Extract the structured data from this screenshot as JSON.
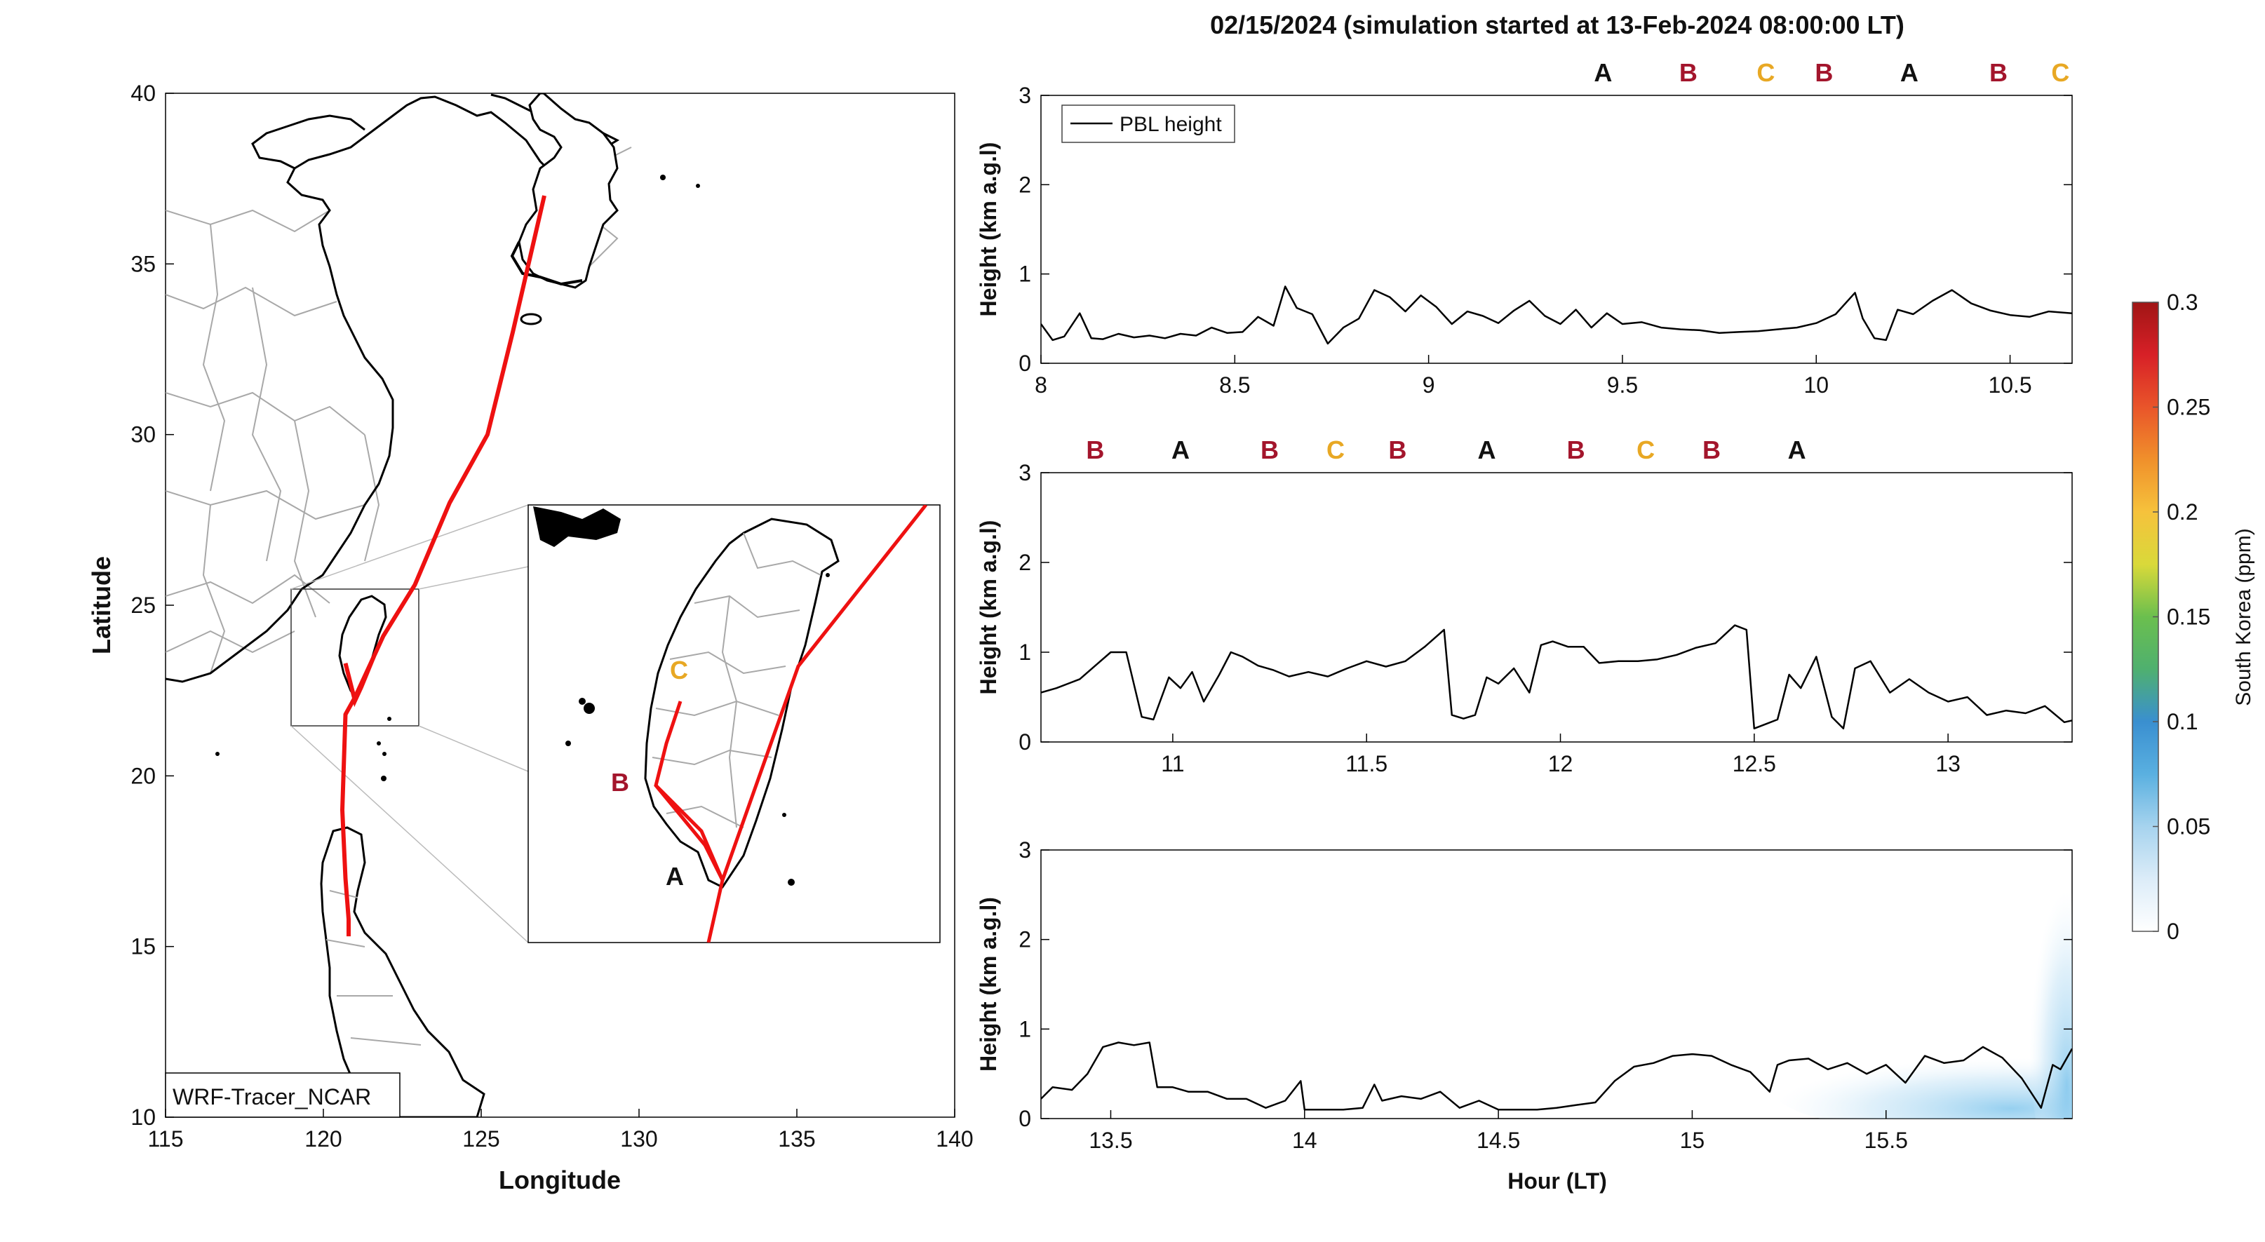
{
  "figure_title": "02/15/2024 (simulation started at 13-Feb-2024 08:00:00 LT)",
  "colors": {
    "track": "#ee1111",
    "A": "#111111",
    "B": "#a3152c",
    "C": "#e8a824",
    "coast": "#000000",
    "border": "#a8a8a8",
    "pbl": "#000000"
  },
  "map": {
    "xlabel": "Longitude",
    "ylabel": "Latitude",
    "xlim": [
      115,
      140
    ],
    "ylim": [
      10,
      40
    ],
    "xticks": [
      "115",
      "120",
      "125",
      "130",
      "135",
      "140"
    ],
    "yticks": [
      "10",
      "15",
      "20",
      "25",
      "30",
      "35",
      "40"
    ],
    "model_label": "WRF-Tracer_NCAR",
    "track": [
      [
        127.0,
        37.0
      ],
      [
        126.0,
        33.0
      ],
      [
        125.2,
        30.0
      ],
      [
        124.0,
        28.0
      ],
      [
        122.9,
        25.6
      ],
      [
        121.9,
        24.1
      ],
      [
        121.6,
        23.5
      ],
      [
        121.0,
        22.3
      ],
      [
        120.7,
        21.8
      ],
      [
        120.6,
        19.0
      ],
      [
        120.7,
        17.0
      ],
      [
        120.8,
        15.8
      ],
      [
        120.8,
        15.3
      ]
    ],
    "inset_track_outer": [
      [
        139.0,
        25.0
      ],
      [
        121.6,
        23.5
      ],
      [
        121.2,
        22.7
      ],
      [
        120.9,
        21.95
      ],
      [
        121.0,
        21.5
      ]
    ],
    "inset_track_inner": [
      [
        120.93,
        22.03
      ],
      [
        120.55,
        22.3
      ],
      [
        120.22,
        22.62
      ],
      [
        120.23,
        23.0
      ],
      [
        120.55,
        23.48
      ]
    ],
    "inset_box": [
      119.2,
      21.5,
      123.2,
      26.0
    ],
    "inset_labels": [
      {
        "text": "A",
        "key": "A"
      },
      {
        "text": "B",
        "key": "B"
      },
      {
        "text": "C",
        "key": "C"
      }
    ]
  },
  "chart_data": [
    {
      "type": "line",
      "title": "",
      "legend": "PBL height",
      "legend_position": "top-left",
      "xlim": [
        8.0,
        10.66
      ],
      "ylim": [
        0,
        3
      ],
      "xticks": [
        "8",
        "8.5",
        "9",
        "9.5",
        "10",
        "10.5"
      ],
      "yticks": [
        "0",
        "1",
        "2",
        "3"
      ],
      "xlabel": "",
      "ylabel": "Height (km a.g.l)",
      "series": [
        {
          "name": "PBL height",
          "x": [
            8.0,
            8.03,
            8.06,
            8.1,
            8.13,
            8.16,
            8.2,
            8.24,
            8.28,
            8.32,
            8.36,
            8.4,
            8.44,
            8.48,
            8.52,
            8.56,
            8.6,
            8.63,
            8.66,
            8.7,
            8.74,
            8.78,
            8.82,
            8.86,
            8.9,
            8.94,
            8.98,
            9.02,
            9.06,
            9.1,
            9.14,
            9.18,
            9.22,
            9.26,
            9.3,
            9.34,
            9.38,
            9.42,
            9.46,
            9.5,
            9.55,
            9.6,
            9.65,
            9.7,
            9.75,
            9.8,
            9.85,
            9.9,
            9.95,
            10.0,
            10.05,
            10.1,
            10.12,
            10.15,
            10.18,
            10.21,
            10.25,
            10.3,
            10.35,
            10.4,
            10.45,
            10.5,
            10.55,
            10.6,
            10.66
          ],
          "y": [
            0.44,
            0.26,
            0.3,
            0.56,
            0.28,
            0.27,
            0.33,
            0.29,
            0.31,
            0.28,
            0.33,
            0.31,
            0.4,
            0.34,
            0.35,
            0.52,
            0.42,
            0.86,
            0.62,
            0.55,
            0.22,
            0.4,
            0.5,
            0.82,
            0.74,
            0.58,
            0.76,
            0.63,
            0.44,
            0.58,
            0.53,
            0.45,
            0.59,
            0.7,
            0.53,
            0.44,
            0.6,
            0.4,
            0.56,
            0.44,
            0.46,
            0.4,
            0.38,
            0.37,
            0.34,
            0.35,
            0.36,
            0.38,
            0.4,
            0.45,
            0.55,
            0.79,
            0.5,
            0.28,
            0.26,
            0.6,
            0.55,
            0.7,
            0.82,
            0.67,
            0.59,
            0.54,
            0.52,
            0.58,
            0.56
          ]
        }
      ],
      "top_labels": [
        {
          "text": "A",
          "key": "A",
          "x": 9.45
        },
        {
          "text": "B",
          "key": "B",
          "x": 9.67
        },
        {
          "text": "C",
          "key": "C",
          "x": 9.87
        },
        {
          "text": "B",
          "key": "B",
          "x": 10.02
        },
        {
          "text": "A",
          "key": "A",
          "x": 10.24
        },
        {
          "text": "B",
          "key": "B",
          "x": 10.47
        },
        {
          "text": "C",
          "key": "C",
          "x": 10.63
        }
      ]
    },
    {
      "type": "line",
      "title": "",
      "legend": "",
      "xlim": [
        10.66,
        13.32
      ],
      "ylim": [
        0,
        3
      ],
      "xticks": [
        "11",
        "11.5",
        "12",
        "12.5",
        "13"
      ],
      "yticks": [
        "0",
        "1",
        "2",
        "3"
      ],
      "xlabel": "",
      "ylabel": "Height (km a.g.l)",
      "series": [
        {
          "name": "PBL height",
          "x": [
            10.66,
            10.7,
            10.76,
            10.8,
            10.84,
            10.88,
            10.92,
            10.95,
            10.99,
            11.02,
            11.05,
            11.08,
            11.12,
            11.15,
            11.18,
            11.22,
            11.26,
            11.3,
            11.35,
            11.4,
            11.45,
            11.5,
            11.55,
            11.6,
            11.65,
            11.7,
            11.72,
            11.75,
            11.78,
            11.81,
            11.84,
            11.88,
            11.92,
            11.95,
            11.98,
            12.02,
            12.06,
            12.1,
            12.15,
            12.2,
            12.25,
            12.3,
            12.35,
            12.4,
            12.45,
            12.48,
            12.5,
            12.53,
            12.56,
            12.59,
            12.62,
            12.66,
            12.7,
            12.73,
            12.76,
            12.8,
            12.85,
            12.9,
            12.95,
            13.0,
            13.05,
            13.1,
            13.15,
            13.2,
            13.25,
            13.3,
            13.32
          ],
          "y": [
            0.55,
            0.6,
            0.7,
            0.85,
            1.0,
            1.0,
            0.28,
            0.25,
            0.72,
            0.6,
            0.78,
            0.45,
            0.75,
            1.0,
            0.95,
            0.85,
            0.8,
            0.73,
            0.78,
            0.73,
            0.82,
            0.9,
            0.84,
            0.9,
            1.06,
            1.25,
            0.3,
            0.26,
            0.3,
            0.72,
            0.65,
            0.82,
            0.55,
            1.08,
            1.12,
            1.06,
            1.06,
            0.88,
            0.9,
            0.9,
            0.92,
            0.97,
            1.05,
            1.1,
            1.3,
            1.25,
            0.15,
            0.2,
            0.25,
            0.75,
            0.6,
            0.95,
            0.28,
            0.15,
            0.82,
            0.9,
            0.55,
            0.7,
            0.55,
            0.45,
            0.5,
            0.3,
            0.35,
            0.32,
            0.4,
            0.22,
            0.24
          ]
        }
      ],
      "top_labels": [
        {
          "text": "B",
          "key": "B",
          "x": 10.8
        },
        {
          "text": "A",
          "key": "A",
          "x": 11.02
        },
        {
          "text": "B",
          "key": "B",
          "x": 11.25
        },
        {
          "text": "C",
          "key": "C",
          "x": 11.42
        },
        {
          "text": "B",
          "key": "B",
          "x": 11.58
        },
        {
          "text": "A",
          "key": "A",
          "x": 11.81
        },
        {
          "text": "B",
          "key": "B",
          "x": 12.04
        },
        {
          "text": "C",
          "key": "C",
          "x": 12.22
        },
        {
          "text": "B",
          "key": "B",
          "x": 12.39
        },
        {
          "text": "A",
          "key": "A",
          "x": 12.61
        }
      ]
    },
    {
      "type": "line",
      "title": "",
      "legend": "",
      "xlim": [
        13.32,
        15.98
      ],
      "ylim": [
        0,
        3
      ],
      "xticks": [
        "13.5",
        "14",
        "14.5",
        "15",
        "15.5"
      ],
      "yticks": [
        "0",
        "1",
        "2",
        "3"
      ],
      "xlabel": "Hour (LT)",
      "ylabel": "Height (km a.g.l)",
      "series": [
        {
          "name": "PBL height",
          "x": [
            13.32,
            13.35,
            13.4,
            13.44,
            13.48,
            13.52,
            13.56,
            13.6,
            13.62,
            13.66,
            13.7,
            13.75,
            13.8,
            13.85,
            13.9,
            13.95,
            13.99,
            14.0,
            14.05,
            14.1,
            14.15,
            14.18,
            14.2,
            14.25,
            14.3,
            14.35,
            14.4,
            14.45,
            14.5,
            14.55,
            14.6,
            14.65,
            14.7,
            14.75,
            14.8,
            14.85,
            14.9,
            14.95,
            15.0,
            15.05,
            15.1,
            15.15,
            15.2,
            15.22,
            15.25,
            15.3,
            15.35,
            15.4,
            15.45,
            15.5,
            15.55,
            15.6,
            15.65,
            15.7,
            15.75,
            15.8,
            15.85,
            15.9,
            15.93,
            15.95,
            15.98
          ],
          "y": [
            0.22,
            0.35,
            0.32,
            0.5,
            0.8,
            0.85,
            0.82,
            0.85,
            0.35,
            0.35,
            0.3,
            0.3,
            0.22,
            0.22,
            0.12,
            0.2,
            0.42,
            0.1,
            0.1,
            0.1,
            0.12,
            0.38,
            0.2,
            0.25,
            0.22,
            0.3,
            0.12,
            0.2,
            0.1,
            0.1,
            0.1,
            0.12,
            0.15,
            0.18,
            0.42,
            0.58,
            0.62,
            0.7,
            0.72,
            0.7,
            0.6,
            0.52,
            0.3,
            0.6,
            0.65,
            0.67,
            0.55,
            0.62,
            0.5,
            0.6,
            0.4,
            0.7,
            0.62,
            0.65,
            0.8,
            0.68,
            0.45,
            0.12,
            0.6,
            0.55,
            0.78
          ]
        }
      ],
      "top_labels": []
    }
  ],
  "colorbar": {
    "label": "South Korea (ppm)",
    "ticks": [
      "0",
      "0.05",
      "0.1",
      "0.15",
      "0.2",
      "0.25",
      "0.3"
    ],
    "range": [
      0,
      0.3
    ],
    "colors": [
      "#ffffff",
      "#dcecf8",
      "#a6d3ee",
      "#5ab0e0",
      "#3a8fd0",
      "#4fb06f",
      "#6bbf4e",
      "#d9d93a",
      "#f6c23c",
      "#f0902b",
      "#e9552a",
      "#d72027",
      "#a01515"
    ]
  }
}
